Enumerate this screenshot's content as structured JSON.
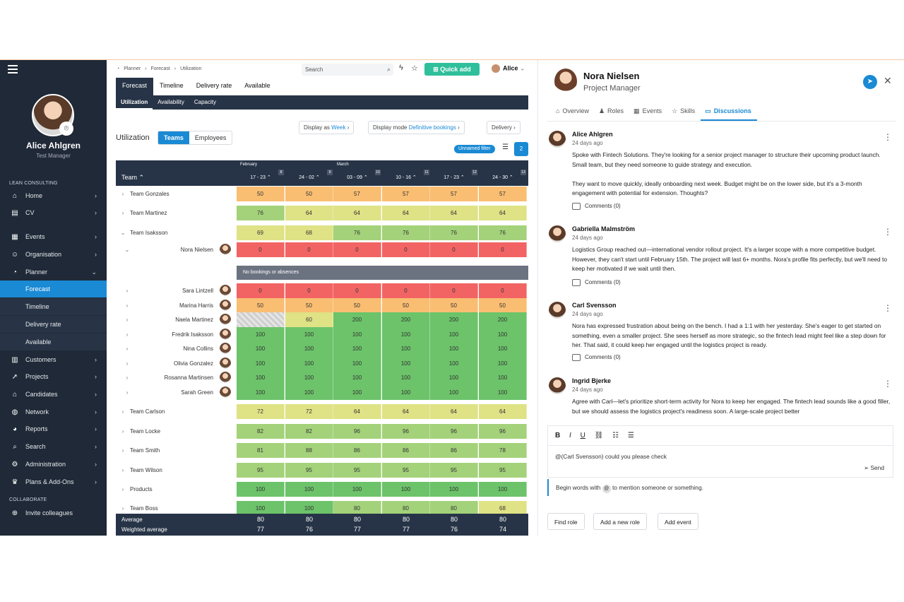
{
  "sidebar": {
    "user_name": "Alice Ahlgren",
    "user_role": "Test Manager",
    "section_lean": "LEAN CONSULTING",
    "section_collab": "COLLABORATE",
    "items": [
      {
        "label": "Home",
        "icon": "home-icon",
        "glyph": "⌂"
      },
      {
        "label": "CV",
        "icon": "cv-icon",
        "glyph": "▤"
      },
      {
        "label": "Events",
        "icon": "calendar-icon",
        "glyph": "▦"
      },
      {
        "label": "Organisation",
        "icon": "people-icon",
        "glyph": "☺"
      },
      {
        "label": "Planner",
        "icon": "planner-icon",
        "glyph": "◔"
      },
      {
        "label": "Forecast"
      },
      {
        "label": "Timeline"
      },
      {
        "label": "Delivery rate"
      },
      {
        "label": "Available"
      },
      {
        "label": "Customers",
        "icon": "building-icon",
        "glyph": "▥"
      },
      {
        "label": "Projects",
        "icon": "rocket-icon",
        "glyph": "➚"
      },
      {
        "label": "Candidates",
        "icon": "graduation-icon",
        "glyph": "⌂"
      },
      {
        "label": "Network",
        "icon": "globe-icon",
        "glyph": "◍"
      },
      {
        "label": "Reports",
        "icon": "pie-chart-icon",
        "glyph": "◕"
      },
      {
        "label": "Search",
        "icon": "search-icon",
        "glyph": "⌕"
      },
      {
        "label": "Administration",
        "icon": "gear-icon",
        "glyph": "⚙"
      },
      {
        "label": "Plans & Add-Ons",
        "icon": "crown-icon",
        "glyph": "♛"
      },
      {
        "label": "Invite colleagues",
        "icon": "invite-icon",
        "glyph": "⊕"
      }
    ]
  },
  "topbar": {
    "breadcrumb": [
      "Planner",
      "›",
      "Forecast",
      "›",
      "Utilization"
    ],
    "search_placeholder": "Search",
    "quick_add": "Quick add",
    "user": "Alice"
  },
  "tabs": [
    "Forecast",
    "Timeline",
    "Delivery rate",
    "Available"
  ],
  "subtabs": [
    "Utilization",
    "Availability",
    "Capacity"
  ],
  "controls": {
    "title": "Utilization",
    "toggle": [
      "Teams",
      "Employees"
    ],
    "display_as_label": "Display as",
    "display_as_value": "Week",
    "display_mode_label": "Display mode",
    "display_mode_value": "Definitive bookings",
    "delivery": "Delivery",
    "filter_chip": "Unnamed filter",
    "filter_count": "2"
  },
  "grid": {
    "team_header": "Team ⌃",
    "months": [
      {
        "label": "February"
      },
      {
        "label": "March"
      }
    ],
    "weeks": [
      {
        "label": "17 - 23 ⌃",
        "num": "8"
      },
      {
        "label": "24 - 02 ⌃",
        "num": "9"
      },
      {
        "label": "03 - 09 ⌃",
        "num": "10"
      },
      {
        "label": "10 - 16 ⌃",
        "num": "11"
      },
      {
        "label": "17 - 23 ⌃",
        "num": "12"
      },
      {
        "label": "24 - 30 ⌃",
        "num": "13"
      }
    ],
    "no_bookings": "No bookings or absences",
    "rows": [
      {
        "name": "Team Gonzales",
        "type": "team",
        "values": [
          "50",
          "50",
          "57",
          "57",
          "57",
          "57"
        ],
        "colors": [
          "o",
          "o",
          "o",
          "o",
          "o",
          "o"
        ]
      },
      {
        "name": "Team Martinez",
        "type": "team",
        "values": [
          "76",
          "64",
          "64",
          "64",
          "64",
          "64"
        ],
        "colors": [
          "g",
          "y",
          "y",
          "y",
          "y",
          "y"
        ]
      },
      {
        "name": "Team Isaksson",
        "type": "team",
        "open": true,
        "values": [
          "69",
          "68",
          "76",
          "76",
          "76",
          "76"
        ],
        "colors": [
          "y",
          "y",
          "g",
          "g",
          "g",
          "g"
        ]
      },
      {
        "name": "Nora Nielsen",
        "type": "person",
        "open": true,
        "values": [
          "0",
          "0",
          "0",
          "0",
          "0",
          "0"
        ],
        "colors": [
          "r",
          "r",
          "r",
          "r",
          "r",
          "r"
        ]
      },
      {
        "name": "Sara Lintzell",
        "type": "person",
        "values": [
          "0",
          "0",
          "0",
          "0",
          "0",
          "0"
        ],
        "colors": [
          "r",
          "r",
          "r",
          "r",
          "r",
          "r"
        ]
      },
      {
        "name": "Marina Harris",
        "type": "person",
        "values": [
          "50",
          "50",
          "50",
          "50",
          "50",
          "50"
        ],
        "colors": [
          "o",
          "o",
          "o",
          "o",
          "o",
          "o"
        ]
      },
      {
        "name": "Naela Martinez",
        "type": "person",
        "values": [
          "",
          "60",
          "200",
          "200",
          "200",
          "200"
        ],
        "colors": [
          "h",
          "y",
          "G",
          "G",
          "G",
          "G"
        ]
      },
      {
        "name": "Fredrik Isaksson",
        "type": "person",
        "values": [
          "100",
          "100",
          "100",
          "100",
          "100",
          "100"
        ],
        "colors": [
          "G",
          "G",
          "G",
          "G",
          "G",
          "G"
        ]
      },
      {
        "name": "Nina Collins",
        "type": "person",
        "values": [
          "100",
          "100",
          "100",
          "100",
          "100",
          "100"
        ],
        "colors": [
          "G",
          "G",
          "G",
          "G",
          "G",
          "G"
        ]
      },
      {
        "name": "Olivia Gonzalez",
        "type": "person",
        "values": [
          "100",
          "100",
          "100",
          "100",
          "100",
          "100"
        ],
        "colors": [
          "G",
          "G",
          "G",
          "G",
          "G",
          "G"
        ]
      },
      {
        "name": "Rosanna Martinsen",
        "type": "person",
        "values": [
          "100",
          "100",
          "100",
          "100",
          "100",
          "100"
        ],
        "colors": [
          "G",
          "G",
          "G",
          "G",
          "G",
          "G"
        ]
      },
      {
        "name": "Sarah Green",
        "type": "person",
        "values": [
          "100",
          "100",
          "100",
          "100",
          "100",
          "100"
        ],
        "colors": [
          "G",
          "G",
          "G",
          "G",
          "G",
          "G"
        ]
      },
      {
        "name": "Team Carlson",
        "type": "team",
        "values": [
          "72",
          "72",
          "64",
          "64",
          "64",
          "64"
        ],
        "colors": [
          "y",
          "y",
          "y",
          "y",
          "y",
          "y"
        ]
      },
      {
        "name": "Team Locke",
        "type": "team",
        "values": [
          "82",
          "82",
          "96",
          "96",
          "96",
          "96"
        ],
        "colors": [
          "g",
          "g",
          "g",
          "g",
          "g",
          "g"
        ]
      },
      {
        "name": "Team Smith",
        "type": "team",
        "values": [
          "81",
          "88",
          "86",
          "86",
          "86",
          "78"
        ],
        "colors": [
          "g",
          "g",
          "g",
          "g",
          "g",
          "g"
        ]
      },
      {
        "name": "Team Wilson",
        "type": "team",
        "values": [
          "95",
          "95",
          "95",
          "95",
          "95",
          "95"
        ],
        "colors": [
          "g",
          "g",
          "g",
          "g",
          "g",
          "g"
        ]
      },
      {
        "name": "Products",
        "type": "team",
        "values": [
          "100",
          "100",
          "100",
          "100",
          "100",
          "100"
        ],
        "colors": [
          "G",
          "G",
          "G",
          "G",
          "G",
          "G"
        ]
      },
      {
        "name": "Team Boss",
        "type": "team",
        "values": [
          "100",
          "100",
          "80",
          "80",
          "80",
          "68"
        ],
        "colors": [
          "G",
          "G",
          "g",
          "g",
          "g",
          "y"
        ]
      }
    ],
    "footer": {
      "average_label": "Average",
      "weighted_label": "Weighted average",
      "average": [
        "80",
        "80",
        "80",
        "80",
        "80",
        "80"
      ],
      "weighted": [
        "77",
        "76",
        "77",
        "77",
        "76",
        "74"
      ]
    }
  },
  "colors": {
    "o": "#f9be72",
    "y": "#dfe285",
    "g": "#a4d27a",
    "G": "#6cc36a",
    "r": "#f26464",
    "h": "#d6d6d6"
  },
  "panel": {
    "name": "Nora Nielsen",
    "title": "Project Manager",
    "tabs": [
      {
        "label": "Overview",
        "icon": "home-icon",
        "glyph": "⌂"
      },
      {
        "label": "Roles",
        "icon": "role-icon",
        "glyph": "♟"
      },
      {
        "label": "Events",
        "icon": "calendar-icon",
        "glyph": "▦"
      },
      {
        "label": "Skills",
        "icon": "star-icon",
        "glyph": "☆"
      },
      {
        "label": "Discussions",
        "icon": "discussions-icon",
        "glyph": "▭"
      }
    ],
    "comments": [
      {
        "author": "Alice Ahlgren",
        "ago": "24 days ago",
        "text": "Spoke with Fintech Solutions. They're looking for a senior project manager to structure their upcoming product launch. Small team, but they need someone to guide strategy and execution.\n\nThey want to move quickly, ideally onboarding next week. Budget might be on the lower side, but it's a 3-month engagement with potential for extension. Thoughts?",
        "comments": "Comments (0)"
      },
      {
        "author": "Gabriella Malmström",
        "ago": "24 days ago",
        "text": "Logistics Group reached out—international vendor rollout project. It's a larger scope with a more competitive budget. However, they can't start until February 15th. The project will last 6+ months. Nora's profile fits perfectly, but we'll need to keep her motivated if we wait until then.",
        "comments": "Comments (0)"
      },
      {
        "author": "Carl Svensson",
        "ago": "24 days ago",
        "text": "Nora has expressed frustration about being on the bench. I had a 1:1 with her yesterday. She's eager to get started on something, even a smaller project. She sees herself as more strategic, so the fintech lead might feel like a step down for her. That said, it could keep her engaged until the logistics project is ready.",
        "comments": "Comments (0)"
      },
      {
        "author": "Ingrid Bjerke",
        "ago": "24 days ago",
        "text": "Agree with Carl—let's prioritize short-term activity for Nora to keep her engaged. The fintech lead sounds like a good filler, but we should assess the logistics project's readiness soon. A large-scale project better"
      }
    ],
    "editor_text": "@(Carl Svensson) could you please check",
    "send": "Send",
    "hint_before": "Begin words with",
    "hint_at": "@",
    "hint_after": "to mention someone or something.",
    "buttons": [
      "Find role",
      "Add a new role",
      "Add event"
    ]
  }
}
